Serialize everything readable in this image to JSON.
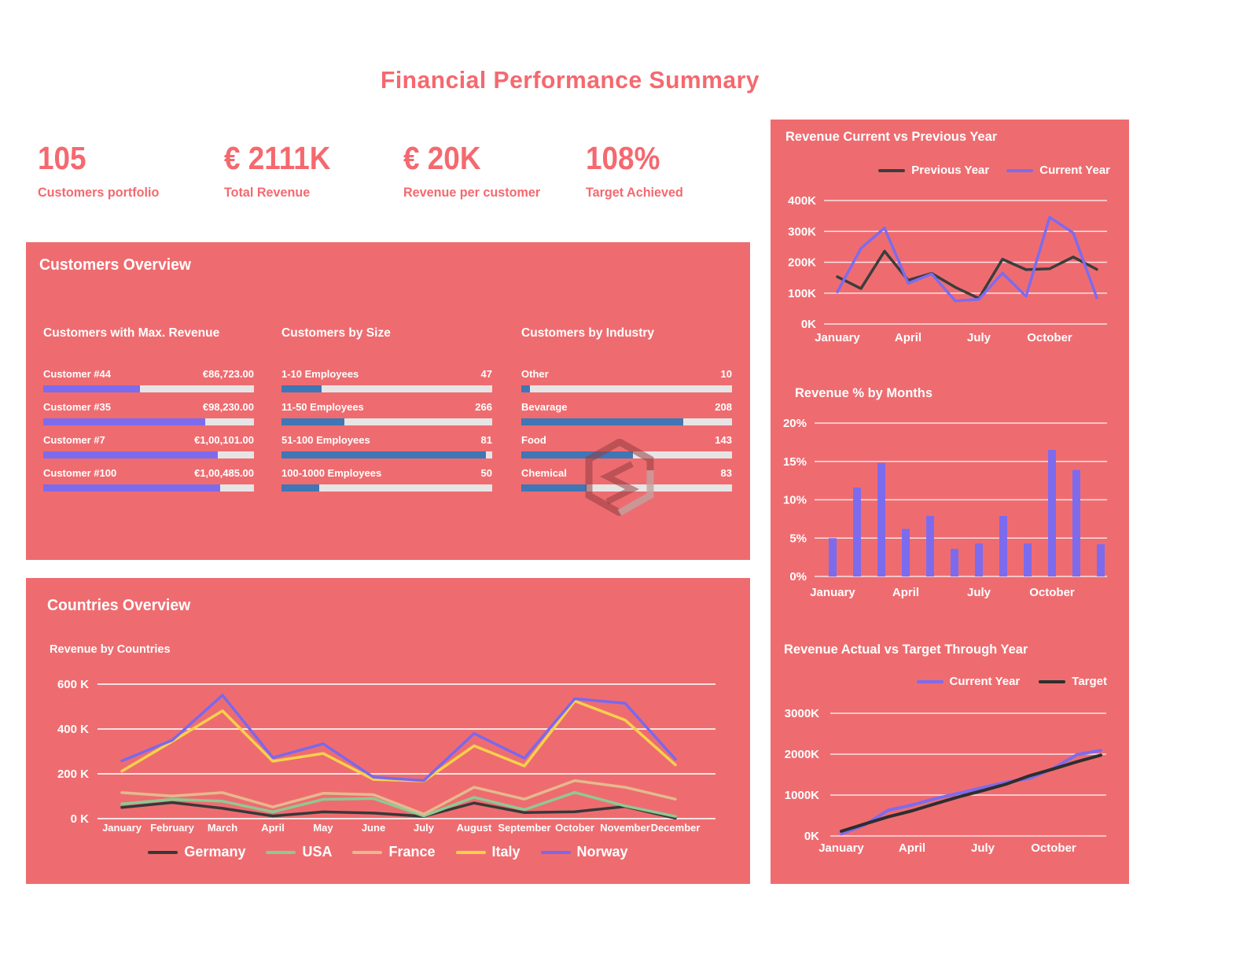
{
  "header": {
    "title": "Financial Performance Summary"
  },
  "kpis": [
    {
      "value": "105",
      "label": "Customers portfolio"
    },
    {
      "value": "€ 2111K",
      "label": "Total Revenue"
    },
    {
      "value": "€ 20K",
      "label": "Revenue per customer"
    },
    {
      "value": "108%",
      "label": "Target Achieved"
    }
  ],
  "customers_overview": {
    "title": "Customers Overview",
    "sections": [
      {
        "title": "Customers with Max. Revenue",
        "bar_color": "#7d6bee",
        "rows": [
          {
            "label": "Customer #44",
            "value": "€86,723.00",
            "fill_pct": 46
          },
          {
            "label": "Customer #35",
            "value": "€98,230.00",
            "fill_pct": 77
          },
          {
            "label": "Customer #7",
            "value": "€1,00,101.00",
            "fill_pct": 83
          },
          {
            "label": "Customer #100",
            "value": "€1,00,485.00",
            "fill_pct": 84
          }
        ]
      },
      {
        "title": "Customers by Size",
        "bar_color": "#3f76b6",
        "rows": [
          {
            "label": "1-10 Employees",
            "value": "47",
            "fill_pct": 19
          },
          {
            "label": "11-50 Employees",
            "value": "266",
            "fill_pct": 30
          },
          {
            "label": "51-100 Employees",
            "value": "81",
            "fill_pct": 97
          },
          {
            "label": "100-1000 Employees",
            "value": "50",
            "fill_pct": 18
          }
        ]
      },
      {
        "title": "Customers by Industry",
        "bar_color": "#3f76b6",
        "rows": [
          {
            "label": "Other",
            "value": "10",
            "fill_pct": 4
          },
          {
            "label": "Bevarage",
            "value": "208",
            "fill_pct": 77
          },
          {
            "label": "Food",
            "value": "143",
            "fill_pct": 53
          },
          {
            "label": "Chemical",
            "value": "83",
            "fill_pct": 31
          }
        ]
      }
    ]
  },
  "countries_overview": {
    "title": "Countries Overview",
    "subtitle": "Revenue by Countries"
  },
  "colors": {
    "panel": "#ee6c70",
    "accent_text": "#f4696f",
    "purple": "#7d6bee",
    "steel_blue": "#3f76b6",
    "track_gray": "#e6e4e4",
    "gridline": "#ffffff"
  },
  "chart_data": {
    "revenue_current_vs_previous": {
      "type": "line",
      "title": "Revenue Current vs Previous Year",
      "x": [
        "January",
        "February",
        "March",
        "April",
        "May",
        "June",
        "July",
        "August",
        "September",
        "October",
        "November",
        "December"
      ],
      "x_tick_indices": [
        0,
        3,
        6,
        9
      ],
      "yticks": [
        "0K",
        "100K",
        "200K",
        "300K",
        "400K"
      ],
      "ylim": [
        0,
        400
      ],
      "legend_position": "top-right",
      "series": [
        {
          "name": "Previous Year",
          "color": "#3d3d3d",
          "values": [
            153,
            115,
            236,
            142,
            164,
            119,
            83,
            210,
            176,
            179,
            217,
            177
          ]
        },
        {
          "name": "Current Year",
          "color": "#7d6bee",
          "values": [
            104,
            245,
            311,
            132,
            162,
            75,
            80,
            165,
            90,
            346,
            295,
            85
          ]
        }
      ]
    },
    "revenue_pct_by_months": {
      "type": "bar",
      "title": "Revenue % by Months",
      "categories": [
        "January",
        "February",
        "March",
        "April",
        "May",
        "June",
        "July",
        "August",
        "September",
        "October",
        "November",
        "December"
      ],
      "x_tick_indices": [
        0,
        3,
        6,
        9
      ],
      "yticks": [
        "0%",
        "5%",
        "10%",
        "15%",
        "20%"
      ],
      "ylim": [
        0,
        20
      ],
      "bar_color": "#7d6bee",
      "values": [
        5,
        11.6,
        14.8,
        6.2,
        7.9,
        3.6,
        4.3,
        7.9,
        4.3,
        16.5,
        13.9,
        4.2
      ]
    },
    "revenue_actual_vs_target": {
      "type": "line",
      "title": "Revenue Actual vs Target Through Year",
      "x": [
        "January",
        "February",
        "March",
        "April",
        "May",
        "June",
        "July",
        "August",
        "September",
        "October",
        "November",
        "December"
      ],
      "x_tick_indices": [
        0,
        3,
        6,
        9
      ],
      "yticks": [
        "0K",
        "1000K",
        "2000K",
        "3000K"
      ],
      "ylim": [
        0,
        3000
      ],
      "legend_position": "top-right",
      "series": [
        {
          "name": "Current Year",
          "color": "#7d6bee",
          "values": [
            50,
            275,
            630,
            755,
            915,
            1045,
            1185,
            1315,
            1410,
            1655,
            1990,
            2090
          ]
        },
        {
          "name": "Target",
          "color": "#2e2e2e",
          "values": [
            115,
            295,
            470,
            615,
            790,
            960,
            1110,
            1270,
            1475,
            1640,
            1815,
            1975
          ]
        }
      ]
    },
    "revenue_by_countries": {
      "type": "line",
      "title": "Revenue by Countries",
      "x": [
        "January",
        "February",
        "March",
        "April",
        "May",
        "June",
        "July",
        "August",
        "September",
        "October",
        "November",
        "December"
      ],
      "x_tick_indices": [
        0,
        1,
        2,
        3,
        4,
        5,
        6,
        7,
        8,
        9,
        10,
        11
      ],
      "yticks": [
        "0 K",
        "200 K",
        "400 K",
        "600 K"
      ],
      "ylim": [
        0,
        600
      ],
      "legend_position": "bottom-center",
      "series": [
        {
          "name": "Germany",
          "color": "#383838",
          "values": [
            50,
            72,
            46,
            12,
            30,
            25,
            10,
            70,
            27,
            31,
            54,
            2
          ]
        },
        {
          "name": "USA",
          "color": "#8ec993",
          "values": [
            66,
            86,
            78,
            30,
            86,
            90,
            12,
            95,
            40,
            117,
            57,
            10
          ]
        },
        {
          "name": "France",
          "color": "#e5b98e",
          "values": [
            116,
            101,
            116,
            52,
            113,
            107,
            20,
            140,
            87,
            170,
            140,
            87
          ]
        },
        {
          "name": "Italy",
          "color": "#f7d14b",
          "values": [
            212,
            345,
            481,
            256,
            291,
            175,
            168,
            325,
            235,
            525,
            440,
            240
          ]
        },
        {
          "name": "Norway",
          "color": "#7a68ee",
          "values": [
            258,
            350,
            551,
            272,
            334,
            185,
            170,
            380,
            270,
            535,
            515,
            265
          ]
        }
      ]
    }
  }
}
